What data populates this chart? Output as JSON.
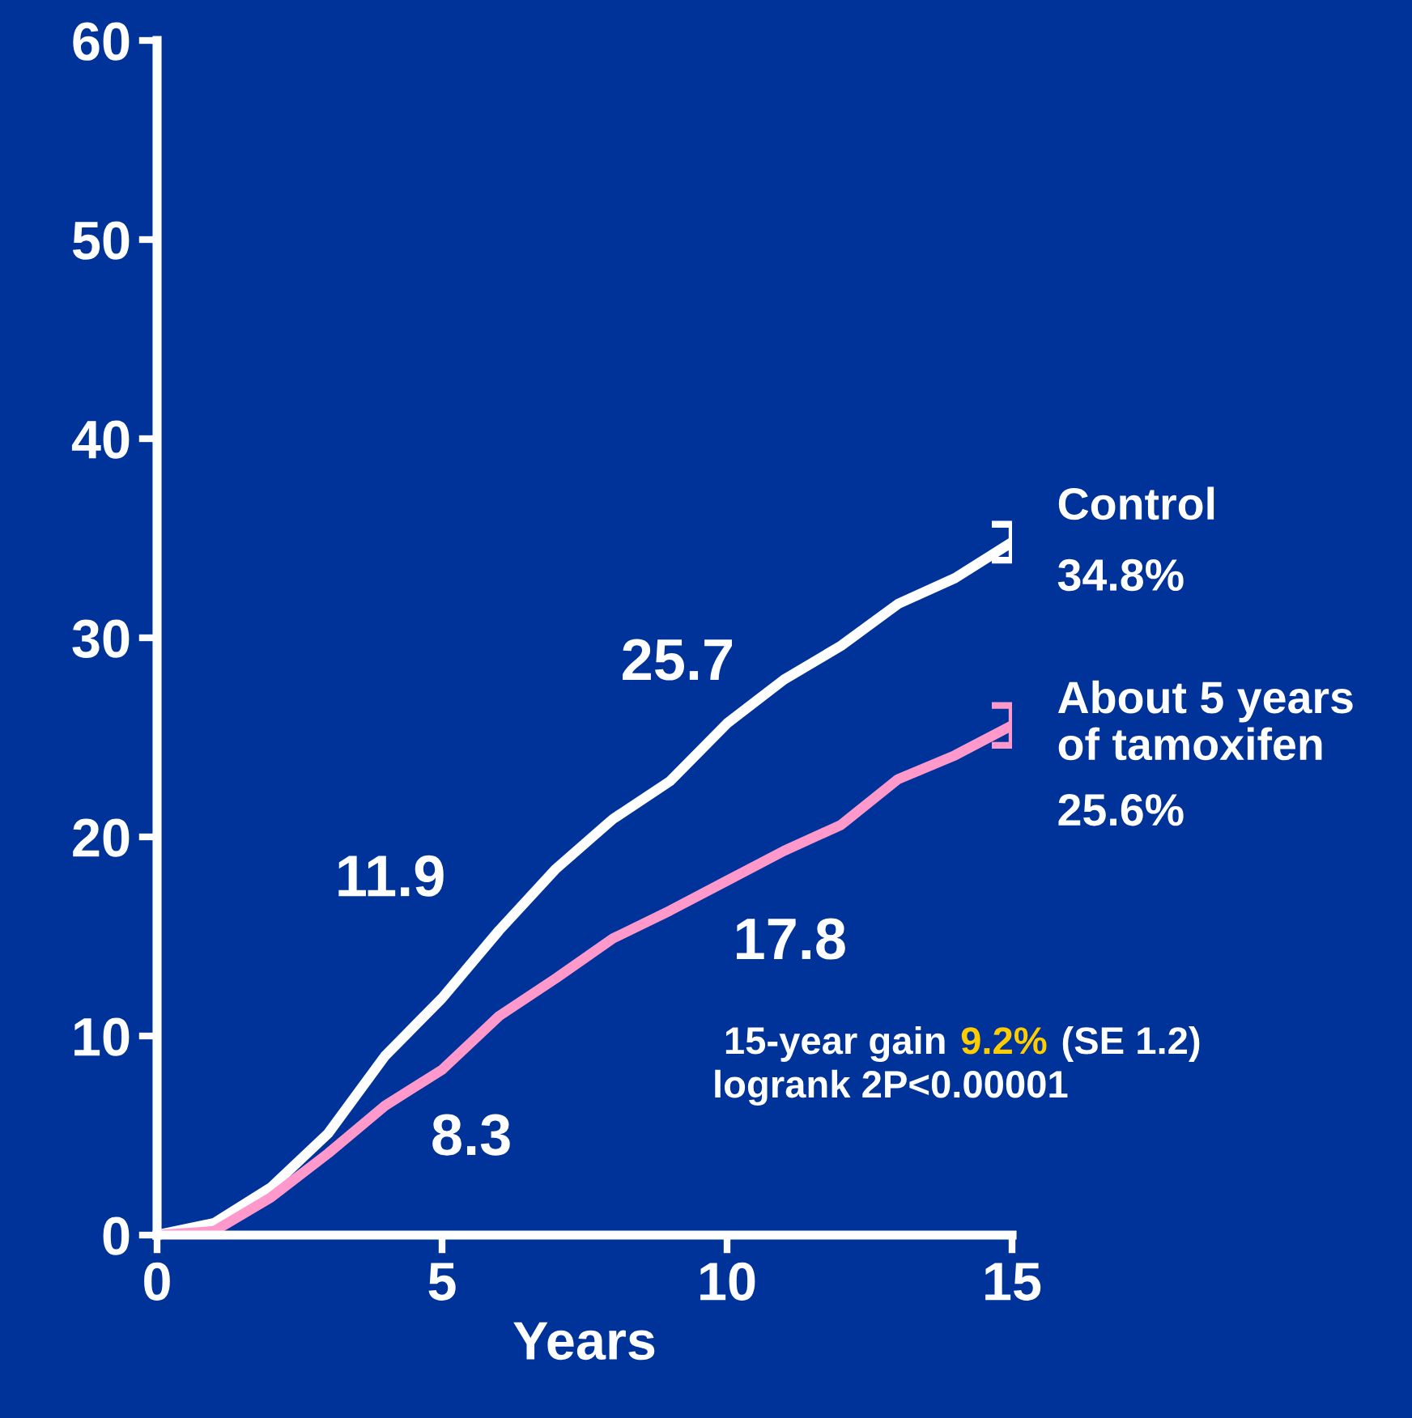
{
  "chart_data": {
    "type": "line",
    "xlabel": "Years",
    "x": [
      0,
      1,
      2,
      3,
      4,
      5,
      6,
      7,
      8,
      9,
      10,
      11,
      12,
      13,
      14,
      15
    ],
    "xlim": [
      0,
      15
    ],
    "xticks": [
      0,
      5,
      10,
      15
    ],
    "ylim": [
      0,
      60
    ],
    "yticks": [
      0,
      10,
      20,
      30,
      40,
      50,
      60
    ],
    "grid": false,
    "legend": false,
    "marker": "none",
    "line_style": "solid",
    "series": [
      {
        "name": "Control",
        "color": "#ffffff",
        "values": [
          0,
          0.6,
          2.4,
          5.1,
          9.0,
          11.9,
          15.3,
          18.4,
          20.9,
          22.8,
          25.7,
          27.9,
          29.6,
          31.7,
          33.0,
          34.8
        ],
        "errors": [
          null,
          null,
          null,
          null,
          null,
          null,
          null,
          null,
          null,
          null,
          null,
          null,
          null,
          null,
          null,
          0.9
        ]
      },
      {
        "name": "About 5 years\nof tamoxifen",
        "color": "#ff99cc",
        "values": [
          0,
          0.2,
          1.9,
          4.1,
          6.5,
          8.3,
          11.0,
          12.9,
          14.9,
          16.3,
          17.8,
          19.3,
          20.6,
          22.9,
          24.1,
          25.6
        ],
        "errors": [
          null,
          null,
          null,
          null,
          null,
          null,
          null,
          null,
          null,
          null,
          null,
          null,
          null,
          null,
          null,
          1.0
        ]
      }
    ],
    "annotations": [
      {
        "text": "11.9",
        "x": 5,
        "y": 11.9
      },
      {
        "text": "25.7",
        "x": 10,
        "y": 25.7
      },
      {
        "text": "8.3",
        "x": 5,
        "y": 8.3
      },
      {
        "text": "17.8",
        "x": 10,
        "y": 17.8
      },
      {
        "text": "34.8%",
        "x": 15,
        "y": 34.8
      },
      {
        "text": "25.6%",
        "x": 15,
        "y": 25.6
      },
      "15-year gain",
      "9.2%",
      "(SE 1.2)",
      "logrank 2P<0.00001"
    ]
  }
}
